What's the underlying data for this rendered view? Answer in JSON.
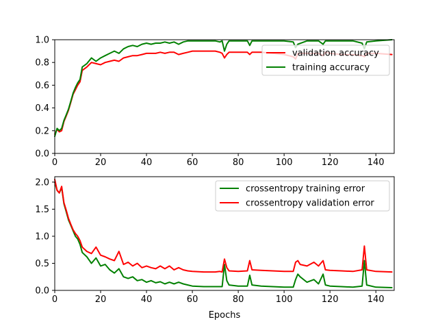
{
  "chart_data": [
    {
      "type": "line",
      "title": "",
      "xlabel": "",
      "ylabel": "",
      "xlim": [
        0,
        148
      ],
      "ylim": [
        0,
        1.0
      ],
      "xticks": [
        0,
        20,
        40,
        60,
        80,
        100,
        120,
        140
      ],
      "yticks": [
        0.0,
        0.2,
        0.4,
        0.6,
        0.8,
        1.0
      ],
      "xtick_labels": [
        "0",
        "20",
        "40",
        "60",
        "80",
        "100",
        "120",
        "140"
      ],
      "ytick_labels": [
        "0.0",
        "0.2",
        "0.4",
        "0.6",
        "0.8",
        "1.0"
      ],
      "grid": false,
      "legend_position": "upper right",
      "series": [
        {
          "name": "validation accuracy",
          "color": "#ff0000",
          "x": [
            0,
            1,
            2,
            3,
            4,
            5,
            6,
            7,
            8,
            9,
            10,
            11,
            12,
            14,
            16,
            18,
            20,
            22,
            24,
            26,
            28,
            30,
            32,
            34,
            36,
            38,
            40,
            42,
            44,
            46,
            48,
            50,
            52,
            54,
            56,
            58,
            60,
            65,
            70,
            72,
            73,
            74,
            75,
            76,
            80,
            84,
            85,
            86,
            90,
            95,
            100,
            104,
            105,
            106,
            110,
            115,
            117,
            118,
            120,
            125,
            130,
            134,
            135,
            136,
            140,
            147
          ],
          "y": [
            0.17,
            0.21,
            0.19,
            0.2,
            0.28,
            0.33,
            0.38,
            0.45,
            0.52,
            0.56,
            0.6,
            0.63,
            0.73,
            0.76,
            0.8,
            0.79,
            0.78,
            0.8,
            0.81,
            0.82,
            0.81,
            0.84,
            0.85,
            0.86,
            0.86,
            0.87,
            0.88,
            0.88,
            0.88,
            0.89,
            0.88,
            0.89,
            0.89,
            0.87,
            0.88,
            0.89,
            0.9,
            0.9,
            0.9,
            0.89,
            0.88,
            0.84,
            0.87,
            0.89,
            0.89,
            0.89,
            0.87,
            0.89,
            0.89,
            0.88,
            0.87,
            0.85,
            0.83,
            0.88,
            0.88,
            0.88,
            0.86,
            0.89,
            0.88,
            0.87,
            0.87,
            0.86,
            0.85,
            0.88,
            0.88,
            0.87
          ]
        },
        {
          "name": "training accuracy",
          "color": "#008000",
          "x": [
            0,
            1,
            2,
            3,
            4,
            5,
            6,
            7,
            8,
            9,
            10,
            11,
            12,
            14,
            16,
            18,
            20,
            22,
            24,
            26,
            28,
            30,
            32,
            34,
            36,
            38,
            40,
            42,
            44,
            46,
            48,
            50,
            52,
            54,
            56,
            58,
            60,
            65,
            70,
            72,
            73,
            74,
            75,
            76,
            80,
            84,
            85,
            86,
            90,
            95,
            100,
            104,
            105,
            106,
            110,
            115,
            117,
            118,
            120,
            125,
            130,
            134,
            135,
            136,
            140,
            147
          ],
          "y": [
            0.15,
            0.22,
            0.2,
            0.22,
            0.29,
            0.34,
            0.39,
            0.46,
            0.53,
            0.58,
            0.62,
            0.65,
            0.76,
            0.79,
            0.84,
            0.81,
            0.84,
            0.86,
            0.88,
            0.9,
            0.88,
            0.92,
            0.94,
            0.95,
            0.94,
            0.96,
            0.97,
            0.96,
            0.97,
            0.97,
            0.98,
            0.97,
            0.98,
            0.96,
            0.98,
            0.99,
            0.99,
            0.99,
            0.99,
            0.98,
            0.99,
            0.9,
            0.96,
            0.99,
            0.99,
            0.99,
            0.95,
            0.99,
            0.99,
            0.99,
            0.99,
            0.98,
            0.93,
            0.96,
            0.99,
            0.99,
            0.96,
            0.99,
            0.99,
            0.99,
            0.99,
            0.97,
            0.92,
            0.98,
            0.99,
            1.0
          ]
        }
      ]
    },
    {
      "type": "line",
      "title": "",
      "xlabel": "Epochs",
      "ylabel": "",
      "xlim": [
        0,
        148
      ],
      "ylim": [
        0,
        2.1
      ],
      "xticks": [
        0,
        20,
        40,
        60,
        80,
        100,
        120,
        140
      ],
      "yticks": [
        0.0,
        0.5,
        1.0,
        1.5,
        2.0
      ],
      "xtick_labels": [
        "0",
        "20",
        "40",
        "60",
        "80",
        "100",
        "120",
        "140"
      ],
      "ytick_labels": [
        "0.0",
        "0.5",
        "1.0",
        "1.5",
        "2.0"
      ],
      "grid": false,
      "legend_position": "upper right",
      "series": [
        {
          "name": "crossentropy training error",
          "color": "#008000",
          "x": [
            0,
            1,
            2,
            3,
            4,
            5,
            6,
            7,
            8,
            9,
            10,
            11,
            12,
            14,
            16,
            18,
            20,
            22,
            24,
            26,
            28,
            30,
            32,
            34,
            36,
            38,
            40,
            42,
            44,
            46,
            48,
            50,
            52,
            54,
            56,
            58,
            60,
            65,
            70,
            72,
            73,
            74,
            75,
            76,
            80,
            84,
            85,
            86,
            90,
            95,
            100,
            104,
            105,
            106,
            107,
            110,
            113,
            115,
            117,
            118,
            120,
            125,
            130,
            134,
            135,
            136,
            140,
            147
          ],
          "y": [
            2.0,
            1.85,
            1.8,
            1.9,
            1.6,
            1.45,
            1.3,
            1.2,
            1.1,
            1.0,
            0.95,
            0.85,
            0.7,
            0.62,
            0.5,
            0.6,
            0.45,
            0.48,
            0.38,
            0.32,
            0.4,
            0.25,
            0.22,
            0.25,
            0.18,
            0.2,
            0.15,
            0.18,
            0.14,
            0.16,
            0.12,
            0.15,
            0.12,
            0.15,
            0.12,
            0.1,
            0.08,
            0.07,
            0.07,
            0.07,
            0.07,
            0.48,
            0.18,
            0.1,
            0.08,
            0.08,
            0.28,
            0.1,
            0.08,
            0.07,
            0.06,
            0.06,
            0.2,
            0.3,
            0.25,
            0.15,
            0.2,
            0.12,
            0.3,
            0.1,
            0.08,
            0.07,
            0.06,
            0.08,
            0.55,
            0.1,
            0.06,
            0.05
          ]
        },
        {
          "name": "crossentropy validation error",
          "color": "#ff0000",
          "x": [
            0,
            1,
            2,
            3,
            4,
            5,
            6,
            7,
            8,
            9,
            10,
            11,
            12,
            14,
            16,
            18,
            20,
            22,
            24,
            26,
            28,
            30,
            32,
            34,
            36,
            38,
            40,
            42,
            44,
            46,
            48,
            50,
            52,
            54,
            56,
            58,
            60,
            65,
            70,
            72,
            73,
            74,
            75,
            76,
            80,
            84,
            85,
            86,
            90,
            95,
            100,
            104,
            105,
            106,
            107,
            110,
            113,
            115,
            117,
            118,
            120,
            125,
            130,
            134,
            135,
            136,
            140,
            147
          ],
          "y": [
            2.05,
            1.85,
            1.8,
            1.92,
            1.62,
            1.48,
            1.33,
            1.22,
            1.12,
            1.05,
            1.0,
            0.92,
            0.8,
            0.72,
            0.68,
            0.8,
            0.65,
            0.62,
            0.58,
            0.55,
            0.72,
            0.48,
            0.52,
            0.45,
            0.5,
            0.42,
            0.45,
            0.42,
            0.4,
            0.45,
            0.4,
            0.45,
            0.38,
            0.42,
            0.38,
            0.36,
            0.35,
            0.34,
            0.34,
            0.35,
            0.34,
            0.58,
            0.42,
            0.36,
            0.35,
            0.36,
            0.55,
            0.38,
            0.37,
            0.36,
            0.35,
            0.35,
            0.52,
            0.55,
            0.48,
            0.45,
            0.52,
            0.45,
            0.55,
            0.38,
            0.37,
            0.36,
            0.35,
            0.38,
            0.82,
            0.38,
            0.35,
            0.34
          ]
        }
      ]
    }
  ]
}
